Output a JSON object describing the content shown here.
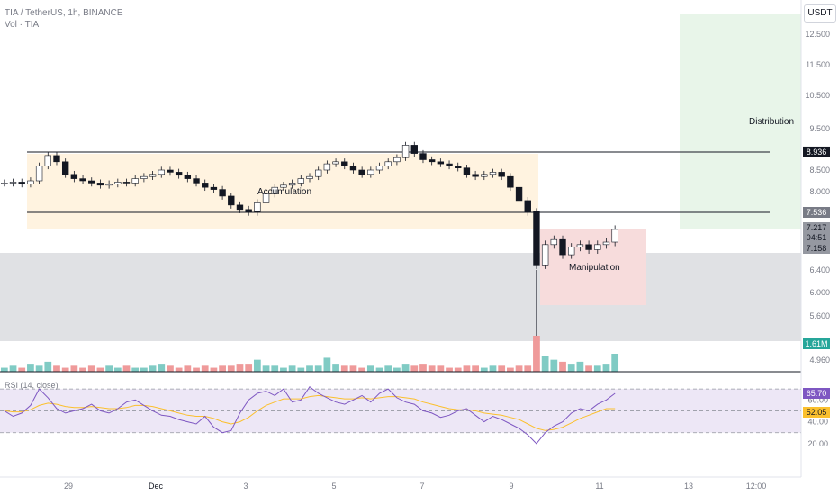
{
  "header": {
    "symbol_line": "TIA / TetherUS, 1h, BINANCE",
    "volume_line": "Vol · TIA",
    "currency_button": "USDT"
  },
  "chart_data": [
    {
      "type": "candlestick",
      "pane": "price",
      "y_ticks": [
        "12.500",
        "11.500",
        "10.500",
        "9.500",
        "8.500",
        "8.000",
        "6.400",
        "6.000",
        "5.600",
        "5.260",
        "4.960"
      ],
      "x_ticks": [
        "29",
        "Dec",
        "3",
        "5",
        "7",
        "9",
        "11",
        "13",
        "12:00"
      ],
      "annotations": [
        "Accumulation",
        "Manipulation",
        "Distribution"
      ],
      "horizontal_lines": [
        8.936,
        7.536
      ],
      "price_labels": [
        "8.936",
        "7.536",
        "7.217",
        "04:51",
        "7.158"
      ],
      "close_series": [
        8.2,
        8.22,
        8.18,
        8.25,
        8.6,
        8.85,
        8.7,
        8.4,
        8.3,
        8.25,
        8.2,
        8.15,
        8.18,
        8.22,
        8.2,
        8.3,
        8.35,
        8.4,
        8.5,
        8.45,
        8.38,
        8.3,
        8.2,
        8.1,
        8.05,
        7.9,
        7.7,
        7.6,
        7.55,
        7.75,
        7.95,
        8.1,
        8.15,
        8.2,
        8.3,
        8.35,
        8.5,
        8.65,
        8.7,
        8.6,
        8.5,
        8.4,
        8.5,
        8.6,
        8.7,
        8.8,
        9.1,
        8.9,
        8.75,
        8.7,
        8.65,
        8.6,
        8.55,
        8.4,
        8.35,
        8.4,
        8.45,
        8.35,
        8.1,
        7.8,
        7.55,
        6.5,
        6.9,
        7.0,
        6.7,
        6.85,
        6.9,
        6.8,
        6.9,
        6.95,
        7.2
      ]
    },
    {
      "type": "bar",
      "pane": "volume",
      "last_value_label": "1.61M",
      "values": [
        2,
        3,
        2,
        4,
        3,
        5,
        3,
        2,
        3,
        2,
        3,
        2,
        3,
        2,
        3,
        2,
        2,
        3,
        4,
        3,
        2,
        3,
        2,
        3,
        2,
        3,
        3,
        4,
        4,
        6,
        3,
        3,
        2,
        3,
        2,
        3,
        3,
        7,
        4,
        3,
        3,
        2,
        3,
        2,
        3,
        2,
        4,
        3,
        4,
        3,
        3,
        2,
        2,
        3,
        3,
        2,
        3,
        3,
        2,
        3,
        3,
        18,
        8,
        6,
        5,
        4,
        5,
        3,
        3,
        4,
        9
      ]
    },
    {
      "type": "line",
      "pane": "rsi",
      "legend": "RSI (14, close)",
      "y_ticks": [
        "60.00",
        "40.00",
        "20.00"
      ],
      "value_labels": [
        "65.70",
        "52.05"
      ],
      "series": [
        {
          "values": [
            50,
            45,
            48,
            55,
            70,
            62,
            52,
            48,
            50,
            52,
            56,
            50,
            48,
            52,
            58,
            60,
            55,
            50,
            46,
            45,
            42,
            40,
            38,
            45,
            35,
            30,
            32,
            48,
            60,
            66,
            68,
            64,
            70,
            58,
            60,
            72,
            66,
            62,
            58,
            56,
            60,
            64,
            58,
            66,
            70,
            62,
            58,
            56,
            50,
            48,
            44,
            46,
            50,
            52,
            46,
            40,
            45,
            42,
            38,
            34,
            28,
            20,
            30,
            36,
            40,
            48,
            52,
            50,
            56,
            60,
            66
          ]
        },
        {
          "values": [
            50,
            49,
            49,
            51,
            55,
            57,
            56,
            54,
            53,
            53,
            54,
            53,
            52,
            52,
            53,
            55,
            55,
            54,
            52,
            50,
            48,
            46,
            45,
            45,
            43,
            40,
            38,
            40,
            44,
            50,
            55,
            58,
            61,
            61,
            61,
            63,
            64,
            63,
            62,
            61,
            61,
            62,
            61,
            62,
            63,
            63,
            62,
            61,
            58,
            56,
            54,
            52,
            51,
            51,
            50,
            48,
            47,
            46,
            44,
            42,
            38,
            34,
            32,
            33,
            35,
            39,
            43,
            46,
            49,
            52,
            52
          ]
        }
      ]
    }
  ],
  "colors": {
    "up": "#26a69a",
    "down": "#ef5350",
    "accumulation_box": "#fff3e0",
    "manipulation_box": "#f7dcdc",
    "distribution_box": "#e8f5e9",
    "gray_zone": "#e0e1e4",
    "rsi_line": "#7e57c2",
    "rsi_ma": "#fbc02d",
    "rsi_band": "#ede7f6"
  }
}
